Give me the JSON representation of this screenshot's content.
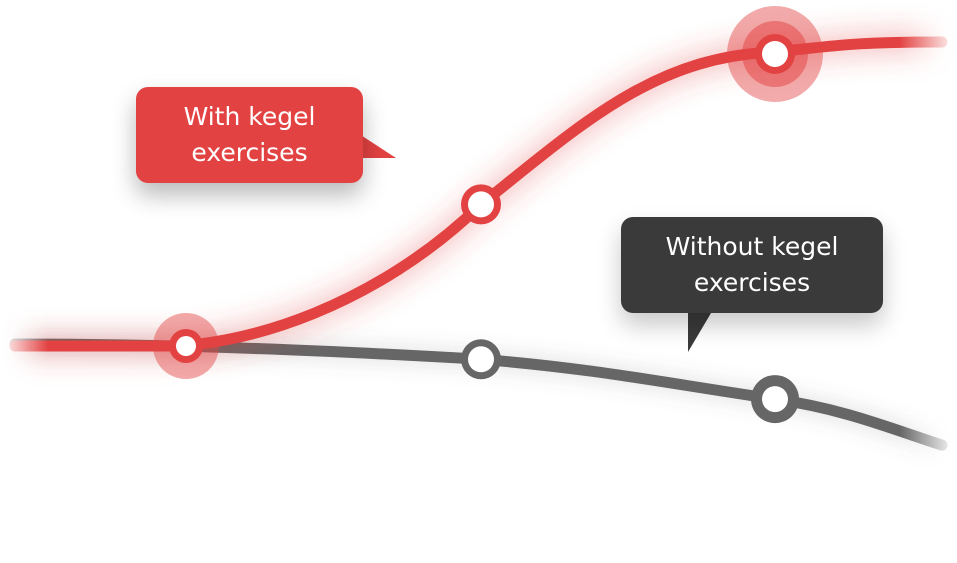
{
  "chart_data": {
    "type": "line",
    "title": "",
    "xlabel": "",
    "ylabel": "",
    "grid": false,
    "legend": "callouts",
    "x": [
      1,
      2,
      3
    ],
    "series": [
      {
        "name": "With kegel exercises",
        "values": [
          1.0,
          2.6,
          4.3
        ],
        "color": "#e34242",
        "marker_style": "hollow-ring",
        "highlighted_points": [
          1,
          3
        ]
      },
      {
        "name": "Without kegel exercises",
        "values": [
          1.0,
          0.85,
          0.4
        ],
        "color": "#666666",
        "marker_style": "hollow-ring",
        "highlighted_points": [
          3
        ]
      }
    ],
    "annotations": [
      {
        "series": "With kegel exercises",
        "text": "With kegel\nexercises",
        "background": "#e34242"
      },
      {
        "series": "Without kegel exercises",
        "text": "Without kegel\nexercises",
        "background": "#3a3a3a"
      }
    ]
  }
}
